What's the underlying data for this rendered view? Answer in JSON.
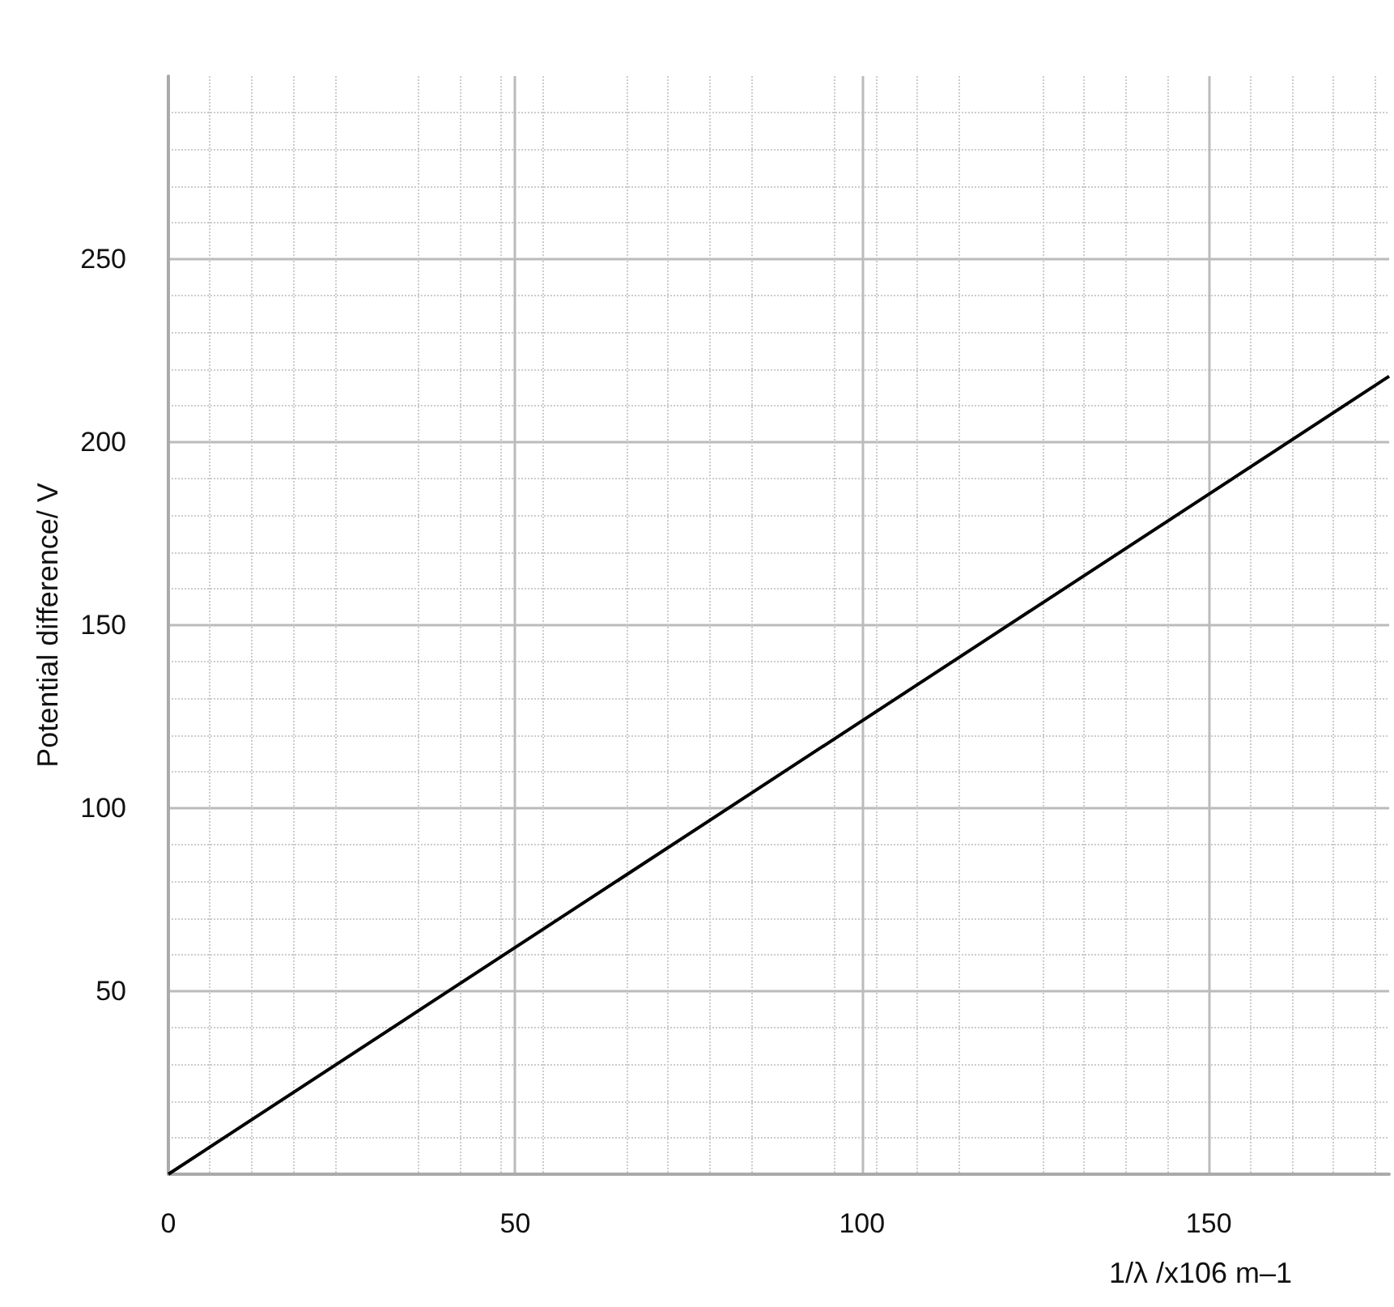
{
  "chart_data": {
    "type": "line",
    "xlabel": "1/λ /x106 m–1",
    "ylabel": "Potential difference/ V",
    "x": [
      0,
      176
    ],
    "series": [
      {
        "color": "#000000",
        "values": [
          0,
          218
        ]
      }
    ],
    "xlim": [
      0,
      176
    ],
    "xticks": [
      0,
      50,
      100,
      150
    ],
    "ylim": [
      0,
      300
    ],
    "yticks": [
      50,
      100,
      150,
      200,
      250
    ],
    "grid": true,
    "marker": "none",
    "line_style": "solid"
  }
}
